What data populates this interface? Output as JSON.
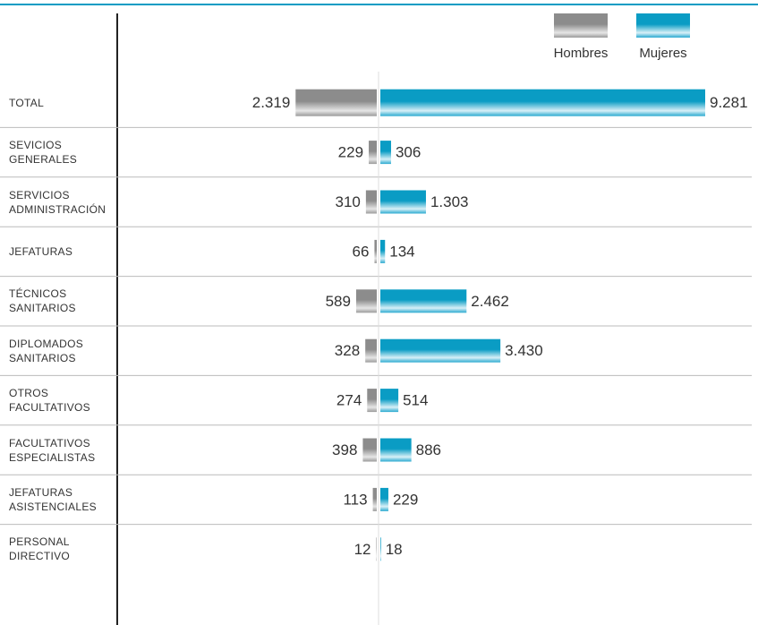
{
  "chart_data": {
    "type": "butterfly",
    "categories": [
      "TOTAL",
      "SEVICIOS\nGENERALES",
      "SERVICIOS\nADMINISTRACIÓN",
      "JEFATURAS",
      "TÉCNICOS\nSANITARIOS",
      "DIPLOMADOS\nSANITARIOS",
      "OTROS\nFACULTATIVOS",
      "FACULTATIVOS\nESPECIALISTAS",
      "JEFATURAS\nASISTENCIALES",
      "PERSONAL\nDIRECTIVO"
    ],
    "series": [
      {
        "name": "Hombres",
        "color": "#8c8c8c",
        "values": [
          2319,
          229,
          310,
          66,
          589,
          328,
          274,
          398,
          113,
          12
        ],
        "value_labels": [
          "2.319",
          "229",
          "310",
          "66",
          "589",
          "328",
          "274",
          "398",
          "113",
          "12"
        ]
      },
      {
        "name": "Mujeres",
        "color": "#0a9cc4",
        "values": [
          9281,
          306,
          1303,
          134,
          2462,
          3430,
          514,
          886,
          229,
          18
        ],
        "value_labels": [
          "9.281",
          "306",
          "1.303",
          "134",
          "2.462",
          "3.430",
          "514",
          "886",
          "229",
          "18"
        ]
      }
    ]
  }
}
